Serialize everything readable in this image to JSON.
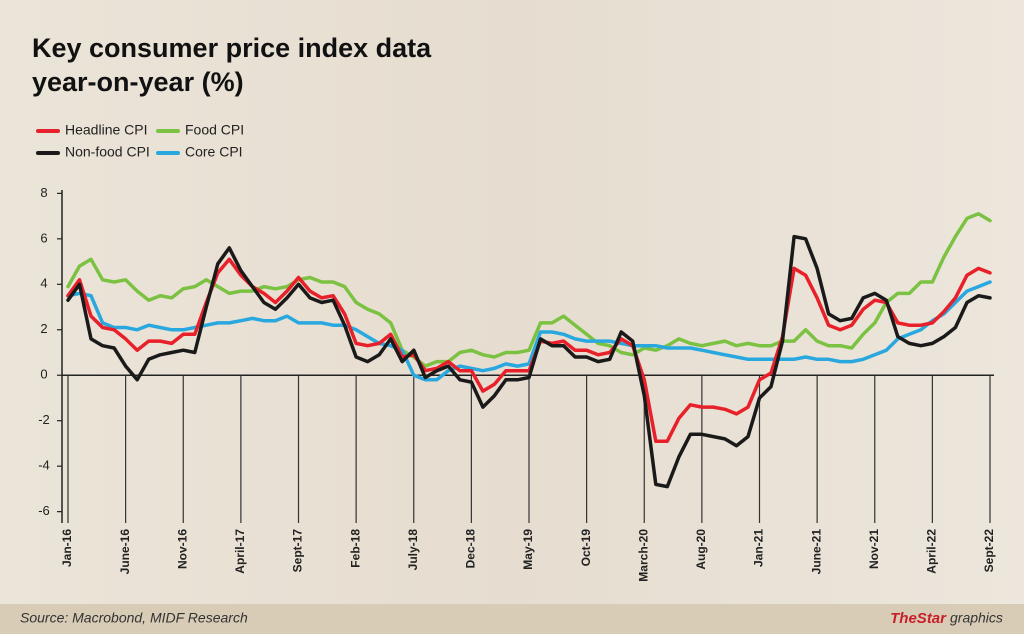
{
  "chart_data": {
    "type": "line",
    "title": [
      "Key consumer price index data",
      "year-on-year (%)"
    ],
    "source": "Source: Macrobond, MIDF Research",
    "credit_brand": "TheStar",
    "credit_suffix": "graphics",
    "categories": [
      "Jan-16",
      null,
      null,
      null,
      null,
      "June-16",
      null,
      null,
      null,
      null,
      "Nov-16",
      null,
      null,
      null,
      null,
      "April-17",
      null,
      null,
      null,
      null,
      "Sept-17",
      null,
      null,
      null,
      null,
      "Feb-18",
      null,
      null,
      null,
      null,
      "July-18",
      null,
      null,
      null,
      null,
      "Dec-18",
      null,
      null,
      null,
      null,
      "May-19",
      null,
      null,
      null,
      null,
      "Oct-19",
      null,
      null,
      null,
      null,
      "March-20",
      null,
      null,
      null,
      null,
      "Aug-20",
      null,
      null,
      null,
      null,
      "Jan-21",
      null,
      null,
      null,
      null,
      "June-21",
      null,
      null,
      null,
      null,
      "Nov-21",
      null,
      null,
      null,
      null,
      "April-22",
      null,
      null,
      null,
      null,
      "Sept-22"
    ],
    "series": [
      {
        "name": "Headline CPI",
        "color": "#e8202a",
        "values": [
          3.5,
          4.2,
          2.6,
          2.1,
          2.0,
          1.6,
          1.1,
          1.5,
          1.5,
          1.4,
          1.8,
          1.8,
          3.2,
          4.5,
          5.1,
          4.4,
          3.9,
          3.6,
          3.2,
          3.7,
          4.3,
          3.7,
          3.4,
          3.5,
          2.7,
          1.4,
          1.3,
          1.4,
          1.8,
          0.8,
          0.9,
          0.2,
          0.3,
          0.6,
          0.2,
          0.2,
          -0.7,
          -0.4,
          0.2,
          0.2,
          0.2,
          1.5,
          1.4,
          1.5,
          1.1,
          1.1,
          0.9,
          1.0,
          1.6,
          1.3,
          -0.2,
          -2.9,
          -2.9,
          -1.9,
          -1.3,
          -1.4,
          -1.4,
          -1.5,
          -1.7,
          -1.4,
          -0.2,
          0.1,
          1.7,
          4.7,
          4.4,
          3.4,
          2.2,
          2.0,
          2.2,
          2.9,
          3.3,
          3.2,
          2.3,
          2.2,
          2.2,
          2.3,
          2.8,
          3.4,
          4.4,
          4.7,
          4.5
        ]
      },
      {
        "name": "Food CPI",
        "color": "#7cc242",
        "values": [
          3.9,
          4.8,
          5.1,
          4.2,
          4.1,
          4.2,
          3.7,
          3.3,
          3.5,
          3.4,
          3.8,
          3.9,
          4.2,
          3.9,
          3.6,
          3.7,
          3.7,
          3.9,
          3.8,
          3.9,
          4.2,
          4.3,
          4.1,
          4.1,
          3.9,
          3.2,
          2.9,
          2.7,
          2.3,
          1.1,
          0.8,
          0.4,
          0.6,
          0.6,
          1.0,
          1.1,
          0.9,
          0.8,
          1.0,
          1.0,
          1.1,
          2.3,
          2.3,
          2.6,
          2.2,
          1.8,
          1.4,
          1.3,
          1.0,
          0.9,
          1.2,
          1.1,
          1.3,
          1.6,
          1.4,
          1.3,
          1.4,
          1.5,
          1.3,
          1.4,
          1.3,
          1.3,
          1.5,
          1.5,
          2.0,
          1.5,
          1.3,
          1.3,
          1.2,
          1.8,
          2.3,
          3.2,
          3.6,
          3.6,
          4.1,
          4.1,
          5.2,
          6.1,
          6.9,
          7.1,
          6.8
        ]
      },
      {
        "name": "Non-food CPI",
        "color": "#1a1a1a",
        "values": [
          3.3,
          4.0,
          1.6,
          1.3,
          1.2,
          0.4,
          -0.2,
          0.7,
          0.9,
          1.0,
          1.1,
          1.0,
          3.0,
          4.9,
          5.6,
          4.6,
          3.9,
          3.2,
          2.9,
          3.4,
          4.0,
          3.4,
          3.2,
          3.3,
          2.2,
          0.8,
          0.6,
          0.9,
          1.6,
          0.6,
          1.1,
          -0.1,
          0.2,
          0.4,
          -0.2,
          -0.3,
          -1.4,
          -0.9,
          -0.2,
          -0.2,
          -0.1,
          1.6,
          1.3,
          1.3,
          0.8,
          0.8,
          0.6,
          0.7,
          1.9,
          1.5,
          -0.9,
          -4.8,
          -4.9,
          -3.6,
          -2.6,
          -2.6,
          -2.7,
          -2.8,
          -3.1,
          -2.7,
          -1.0,
          -0.5,
          1.5,
          6.1,
          6.0,
          4.7,
          2.7,
          2.4,
          2.5,
          3.4,
          3.6,
          3.3,
          1.7,
          1.4,
          1.3,
          1.4,
          1.7,
          2.1,
          3.2,
          3.5,
          3.4
        ]
      },
      {
        "name": "Core CPI",
        "color": "#29a8e0",
        "values": [
          3.5,
          3.6,
          3.5,
          2.3,
          2.1,
          2.1,
          2.0,
          2.2,
          2.1,
          2.0,
          2.0,
          2.1,
          2.2,
          2.3,
          2.3,
          2.4,
          2.5,
          2.4,
          2.4,
          2.6,
          2.3,
          2.3,
          2.3,
          2.2,
          2.2,
          2.0,
          1.7,
          1.4,
          1.3,
          1.1,
          0.0,
          -0.2,
          -0.2,
          0.2,
          0.4,
          0.3,
          0.2,
          0.3,
          0.5,
          0.4,
          0.5,
          1.9,
          1.9,
          1.8,
          1.6,
          1.5,
          1.5,
          1.5,
          1.4,
          1.3,
          1.3,
          1.3,
          1.2,
          1.2,
          1.2,
          1.1,
          1.0,
          0.9,
          0.8,
          0.7,
          0.7,
          0.7,
          0.7,
          0.7,
          0.8,
          0.7,
          0.7,
          0.6,
          0.6,
          0.7,
          0.9,
          1.1,
          1.6,
          1.8,
          2.0,
          2.4,
          2.7,
          3.2,
          3.7,
          3.9,
          4.1
        ]
      }
    ],
    "ylim": [
      -6.5,
      8.5
    ],
    "yticks": [
      8,
      6,
      4,
      2,
      0,
      -2,
      -4,
      -6
    ]
  }
}
